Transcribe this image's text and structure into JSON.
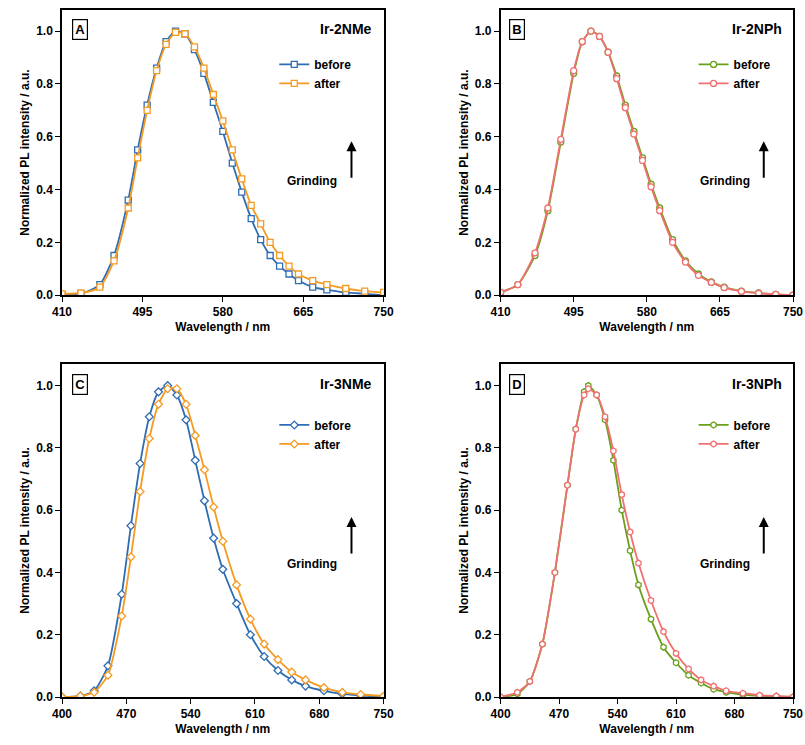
{
  "chart_data": [
    {
      "type": "line",
      "panel": "A",
      "title": "Ir-2NMe",
      "annotation": "Grinding",
      "x_label": "Wavelength / nm",
      "y_label": "Normalized PL intensity / a.u.",
      "xlim": [
        410,
        750
      ],
      "xticks": [
        410,
        495,
        580,
        665,
        750
      ],
      "ylim": [
        0,
        1.08
      ],
      "yticks": [
        {
          "value": 0,
          "label": "0.0"
        },
        {
          "value": 0.2,
          "label": "0.2"
        },
        {
          "value": 0.4,
          "label": "0.4"
        },
        {
          "value": 0.6,
          "label": "0.6"
        },
        {
          "value": 0.8,
          "label": "0.8"
        },
        {
          "value": 1.0,
          "label": "1.0"
        }
      ],
      "legend": "upper right",
      "marker": "square",
      "series": [
        {
          "name": "before",
          "color": "#2e6db4",
          "x": [
            410,
            430,
            450,
            465,
            480,
            490,
            500,
            510,
            520,
            530,
            540,
            550,
            560,
            570,
            580,
            590,
            600,
            610,
            620,
            630,
            640,
            650,
            660,
            675,
            690,
            710,
            730,
            750
          ],
          "values": [
            0,
            0.005,
            0.04,
            0.15,
            0.36,
            0.55,
            0.72,
            0.86,
            0.96,
            1.0,
            0.99,
            0.93,
            0.84,
            0.73,
            0.62,
            0.5,
            0.39,
            0.29,
            0.21,
            0.15,
            0.11,
            0.08,
            0.055,
            0.03,
            0.02,
            0.01,
            0.005,
            0
          ]
        },
        {
          "name": "after",
          "color": "#f59a23",
          "x": [
            410,
            430,
            450,
            465,
            480,
            490,
            500,
            510,
            520,
            530,
            540,
            550,
            560,
            570,
            580,
            590,
            600,
            610,
            620,
            630,
            640,
            650,
            660,
            675,
            690,
            710,
            730,
            750
          ],
          "values": [
            0.005,
            0.008,
            0.03,
            0.13,
            0.33,
            0.52,
            0.7,
            0.85,
            0.95,
            0.995,
            0.99,
            0.94,
            0.86,
            0.76,
            0.66,
            0.55,
            0.44,
            0.34,
            0.27,
            0.2,
            0.15,
            0.11,
            0.08,
            0.055,
            0.04,
            0.025,
            0.015,
            0.01
          ]
        }
      ]
    },
    {
      "type": "line",
      "panel": "B",
      "title": "Ir-2NPh",
      "annotation": "Grinding",
      "x_label": "Wavelength / nm",
      "y_label": "Normalized PL intensity / a.u.",
      "xlim": [
        410,
        750
      ],
      "xticks": [
        410,
        495,
        580,
        665,
        750
      ],
      "ylim": [
        0,
        1.08
      ],
      "yticks": [
        {
          "value": 0,
          "label": "0.0"
        },
        {
          "value": 0.2,
          "label": "0.2"
        },
        {
          "value": 0.4,
          "label": "0.4"
        },
        {
          "value": 0.6,
          "label": "0.6"
        },
        {
          "value": 0.8,
          "label": "0.8"
        },
        {
          "value": 1.0,
          "label": "1.0"
        }
      ],
      "legend": "upper right",
      "marker": "circle",
      "series": [
        {
          "name": "before",
          "color": "#6a9f1a",
          "x": [
            410,
            430,
            450,
            465,
            480,
            495,
            505,
            515,
            525,
            535,
            545,
            555,
            565,
            575,
            585,
            595,
            610,
            625,
            640,
            655,
            670,
            690,
            710,
            730,
            750
          ],
          "values": [
            0.01,
            0.04,
            0.15,
            0.32,
            0.58,
            0.84,
            0.96,
            1.0,
            0.98,
            0.92,
            0.83,
            0.72,
            0.62,
            0.52,
            0.42,
            0.33,
            0.21,
            0.13,
            0.08,
            0.05,
            0.03,
            0.015,
            0.008,
            0.003,
            0
          ]
        },
        {
          "name": "after",
          "color": "#f07070",
          "x": [
            410,
            430,
            450,
            465,
            480,
            495,
            505,
            515,
            525,
            535,
            545,
            555,
            565,
            575,
            585,
            595,
            610,
            625,
            640,
            655,
            670,
            690,
            710,
            730,
            750
          ],
          "values": [
            0.01,
            0.04,
            0.16,
            0.33,
            0.59,
            0.85,
            0.96,
            1.0,
            0.98,
            0.92,
            0.82,
            0.71,
            0.61,
            0.51,
            0.41,
            0.32,
            0.2,
            0.125,
            0.075,
            0.048,
            0.028,
            0.014,
            0.007,
            0.003,
            0
          ]
        }
      ]
    },
    {
      "type": "line",
      "panel": "C",
      "title": "Ir-3NMe",
      "annotation": "Grinding",
      "x_label": "Wavelength / nm",
      "y_label": "Normalized PL intensity / a.u.",
      "xlim": [
        400,
        750
      ],
      "xticks": [
        400,
        470,
        540,
        610,
        680,
        750
      ],
      "ylim": [
        0,
        1.07
      ],
      "yticks": [
        {
          "value": 0,
          "label": "0.0"
        },
        {
          "value": 0.2,
          "label": "0.2"
        },
        {
          "value": 0.4,
          "label": "0.4"
        },
        {
          "value": 0.6,
          "label": "0.6"
        },
        {
          "value": 0.8,
          "label": "0.8"
        },
        {
          "value": 1.0,
          "label": "1.0"
        }
      ],
      "legend": "upper right",
      "marker": "diamond",
      "series": [
        {
          "name": "before",
          "color": "#2e6db4",
          "x": [
            400,
            420,
            435,
            450,
            465,
            475,
            485,
            495,
            505,
            515,
            525,
            535,
            545,
            555,
            565,
            575,
            590,
            605,
            620,
            635,
            650,
            665,
            685,
            705,
            725,
            750
          ],
          "values": [
            0,
            0.003,
            0.02,
            0.1,
            0.33,
            0.55,
            0.75,
            0.9,
            0.98,
            1.0,
            0.97,
            0.89,
            0.76,
            0.63,
            0.51,
            0.41,
            0.3,
            0.2,
            0.13,
            0.085,
            0.055,
            0.035,
            0.02,
            0.01,
            0.005,
            0
          ]
        },
        {
          "name": "after",
          "color": "#f59a23",
          "x": [
            400,
            420,
            435,
            450,
            465,
            475,
            485,
            495,
            505,
            515,
            525,
            535,
            545,
            555,
            565,
            575,
            590,
            605,
            620,
            635,
            650,
            665,
            685,
            705,
            725,
            750
          ],
          "values": [
            0,
            0.003,
            0.015,
            0.07,
            0.26,
            0.45,
            0.66,
            0.83,
            0.94,
            0.99,
            0.99,
            0.94,
            0.84,
            0.73,
            0.61,
            0.5,
            0.36,
            0.25,
            0.17,
            0.12,
            0.08,
            0.055,
            0.03,
            0.015,
            0.008,
            0.003
          ]
        }
      ]
    },
    {
      "type": "line",
      "panel": "D",
      "title": "Ir-3NPh",
      "annotation": "Grinding",
      "x_label": "Wavelength / nm",
      "y_label": "Normalized PL intensity / a.u.",
      "xlim": [
        400,
        750
      ],
      "xticks": [
        400,
        470,
        540,
        610,
        680,
        750
      ],
      "ylim": [
        0,
        1.07
      ],
      "yticks": [
        {
          "value": 0,
          "label": "0.0"
        },
        {
          "value": 0.2,
          "label": "0.2"
        },
        {
          "value": 0.4,
          "label": "0.4"
        },
        {
          "value": 0.6,
          "label": "0.6"
        },
        {
          "value": 0.8,
          "label": "0.8"
        },
        {
          "value": 1.0,
          "label": "1.0"
        }
      ],
      "legend": "upper right",
      "marker": "hexagon",
      "series": [
        {
          "name": "before",
          "color": "#6a9f1a",
          "x": [
            400,
            420,
            435,
            450,
            465,
            480,
            490,
            500,
            505,
            515,
            525,
            535,
            545,
            555,
            565,
            580,
            595,
            610,
            625,
            640,
            655,
            670,
            690,
            710,
            730,
            750
          ],
          "values": [
            0,
            0.01,
            0.05,
            0.17,
            0.4,
            0.68,
            0.86,
            0.98,
            1.0,
            0.97,
            0.89,
            0.76,
            0.6,
            0.47,
            0.36,
            0.25,
            0.16,
            0.11,
            0.07,
            0.045,
            0.025,
            0.015,
            0.008,
            0.004,
            0.002,
            0
          ]
        },
        {
          "name": "after",
          "color": "#f07070",
          "x": [
            400,
            420,
            435,
            450,
            465,
            480,
            490,
            500,
            505,
            515,
            525,
            535,
            545,
            555,
            565,
            580,
            595,
            610,
            625,
            640,
            655,
            670,
            690,
            710,
            730,
            750
          ],
          "values": [
            0,
            0.015,
            0.05,
            0.17,
            0.4,
            0.68,
            0.86,
            0.97,
            0.99,
            0.97,
            0.9,
            0.79,
            0.65,
            0.53,
            0.43,
            0.31,
            0.21,
            0.14,
            0.09,
            0.055,
            0.035,
            0.02,
            0.012,
            0.006,
            0.003,
            0
          ]
        }
      ]
    }
  ]
}
